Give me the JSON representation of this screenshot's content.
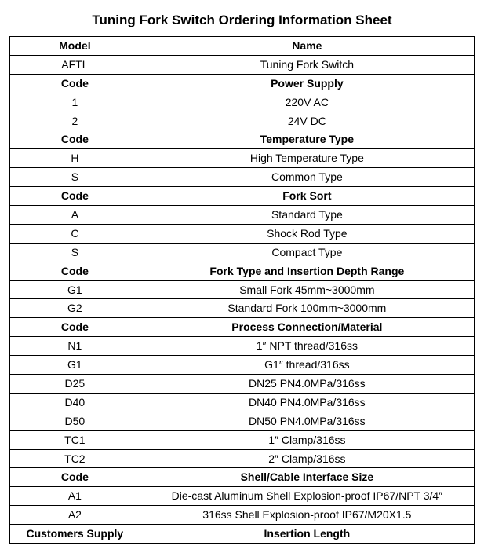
{
  "title": "Tuning Fork Switch Ordering Information Sheet",
  "table": {
    "col_widths": [
      "28%",
      "72%"
    ],
    "rows": [
      {
        "header": true,
        "code": "Model",
        "desc": "Name"
      },
      {
        "header": false,
        "code": "AFTL",
        "desc": "Tuning Fork Switch"
      },
      {
        "header": true,
        "code": "Code",
        "desc": "Power Supply"
      },
      {
        "header": false,
        "code": "1",
        "desc": "220V AC"
      },
      {
        "header": false,
        "code": "2",
        "desc": "24V DC"
      },
      {
        "header": true,
        "code": "Code",
        "desc": "Temperature Type"
      },
      {
        "header": false,
        "code": "H",
        "desc": "High Temperature Type"
      },
      {
        "header": false,
        "code": "S",
        "desc": "Common Type"
      },
      {
        "header": true,
        "code": "Code",
        "desc": "Fork Sort"
      },
      {
        "header": false,
        "code": "A",
        "desc": "Standard Type"
      },
      {
        "header": false,
        "code": "C",
        "desc": "Shock Rod Type"
      },
      {
        "header": false,
        "code": "S",
        "desc": "Compact Type"
      },
      {
        "header": true,
        "code": "Code",
        "desc": "Fork Type and Insertion Depth Range"
      },
      {
        "header": false,
        "code": "G1",
        "desc": "Small Fork 45mm~3000mm"
      },
      {
        "header": false,
        "code": "G2",
        "desc": "Standard Fork 100mm~3000mm"
      },
      {
        "header": true,
        "code": "Code",
        "desc": "Process Connection/Material"
      },
      {
        "header": false,
        "code": "N1",
        "desc": "1″ NPT thread/316ss"
      },
      {
        "header": false,
        "code": "G1",
        "desc": "G1″ thread/316ss"
      },
      {
        "header": false,
        "code": "D25",
        "desc": "DN25 PN4.0MPa/316ss"
      },
      {
        "header": false,
        "code": "D40",
        "desc": "DN40 PN4.0MPa/316ss"
      },
      {
        "header": false,
        "code": "D50",
        "desc": "DN50 PN4.0MPa/316ss"
      },
      {
        "header": false,
        "code": "TC1",
        "desc": "1″ Clamp/316ss"
      },
      {
        "header": false,
        "code": "TC2",
        "desc": "2″ Clamp/316ss"
      },
      {
        "header": true,
        "code": "Code",
        "desc": "Shell/Cable Interface Size"
      },
      {
        "header": false,
        "code": "A1",
        "desc": "Die-cast Aluminum Shell Explosion-proof IP67/NPT 3/4″"
      },
      {
        "header": false,
        "code": "A2",
        "desc": "316ss Shell Explosion-proof IP67/M20X1.5"
      },
      {
        "header": true,
        "code": "Customers Supply",
        "desc": "Insertion Length"
      }
    ]
  }
}
